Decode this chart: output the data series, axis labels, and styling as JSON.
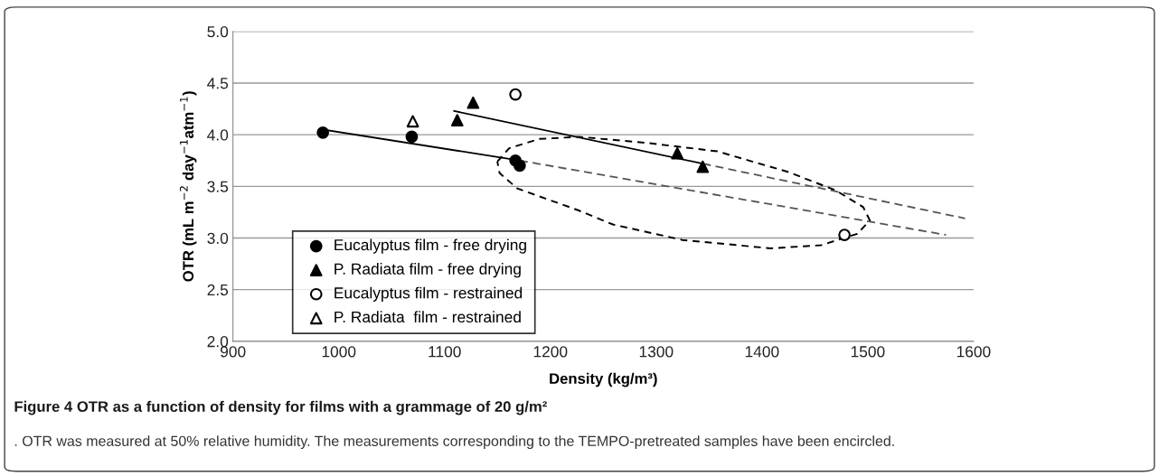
{
  "chart_data": {
    "type": "scatter",
    "title": "Figure 4 OTR as a function of density for films with a grammage of 20 g/m²",
    "annotations": [
      ". OTR was measured at 50% relative humidity. The measurements corresponding to the TEMPO-pretreated samples have been encircled."
    ],
    "xlabel": "Density (kg/m³)",
    "ylabel": "OTR (mL m$^{−2}$ day$^{−1}$atm$^{−1}$)",
    "xlim": [
      900,
      1600
    ],
    "xticks": [
      900,
      1000,
      1100,
      1200,
      1300,
      1400,
      1500,
      1600
    ],
    "ylim": [
      2.0,
      5.0
    ],
    "yticks": [
      {
        "value": 2.0,
        "label": "2.0"
      },
      {
        "value": 2.5,
        "label": "2.5"
      },
      {
        "value": 3.0,
        "label": "3.0"
      },
      {
        "value": 3.5,
        "label": "3.5"
      },
      {
        "value": 4.0,
        "label": "4.0"
      },
      {
        "value": 4.5,
        "label": "4.5"
      },
      {
        "value": 5.0,
        "label": "5.0"
      }
    ],
    "grid": "y",
    "legend": "bottom left",
    "series": [
      {
        "type": "line",
        "color": "#000000",
        "marker": "none",
        "line_style": "solid",
        "x": [
          985,
          1171
        ],
        "values": [
          4.05,
          3.75
        ]
      },
      {
        "type": "line",
        "color": "#555555",
        "marker": "none",
        "line_style": "dashed",
        "x": [
          1171,
          1574
        ],
        "values": [
          3.75,
          3.03
        ]
      },
      {
        "type": "line",
        "color": "#000000",
        "marker": "none",
        "line_style": "solid",
        "x": [
          1109,
          1344
        ],
        "values": [
          4.23,
          3.72
        ]
      },
      {
        "type": "line",
        "color": "#555555",
        "marker": "none",
        "line_style": "dashed",
        "x": [
          1344,
          1592
        ],
        "values": [
          3.72,
          3.19
        ]
      },
      {
        "type": "scatter",
        "name": "Eucalyptus film - free drying",
        "color": "#000000",
        "marker": "circle",
        "x": [
          985,
          1069,
          1167,
          1171
        ],
        "values": [
          4.02,
          3.98,
          3.75,
          3.7
        ]
      },
      {
        "type": "scatter",
        "name": "P. Radiata film - free drying",
        "color": "#000000",
        "marker": "triangle",
        "x": [
          1112,
          1127,
          1320,
          1344
        ],
        "values": [
          4.14,
          4.31,
          3.82,
          3.69
        ]
      },
      {
        "type": "scatter",
        "name": "Eucalyptus film - restrained",
        "color": "#ffffff",
        "marker": "circle",
        "x": [
          1167,
          1478
        ],
        "values": [
          4.39,
          3.03
        ]
      },
      {
        "type": "scatter",
        "name": "P. Radiata  film - restrained",
        "color": "#ffffff",
        "marker": "triangle",
        "x": [
          1070
        ],
        "values": [
          4.13
        ]
      }
    ]
  }
}
